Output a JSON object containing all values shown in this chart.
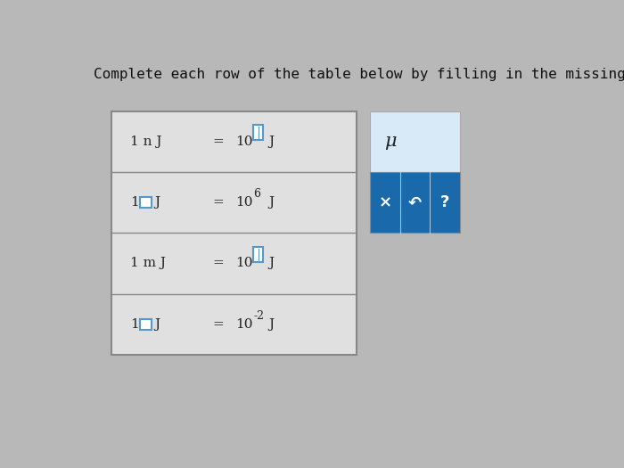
{
  "title": "Complete each row of the table below by filling in the missing pref",
  "title_fontsize": 11.5,
  "background_color": "#b8b8b8",
  "table_bg": "#e8e8e8",
  "rows": [
    {
      "left1": "1 n J",
      "left_has_box": false,
      "eq": "=",
      "right": "10",
      "sup": "",
      "unit": "J",
      "sup_style": "box"
    },
    {
      "left1": "1",
      "left_has_box": true,
      "left2": "J",
      "eq": "=",
      "right": "10",
      "sup": "6",
      "unit": "J",
      "sup_style": "plain"
    },
    {
      "left1": "1 m J",
      "left_has_box": false,
      "eq": "=",
      "right": "10",
      "sup": "",
      "unit": "J",
      "sup_style": "box"
    },
    {
      "left1": "1",
      "left_has_box": true,
      "left2": "J",
      "eq": "=",
      "right": "10",
      "sup": "-2",
      "unit": "J",
      "sup_style": "plain"
    }
  ],
  "panel_bg": "#1a6aab",
  "panel_light_bg": "#d8eaf8",
  "panel_symbols": [
    "×",
    "↶",
    "?"
  ],
  "panel_mu": "μ",
  "box_color": "#5599cc",
  "box_color_row1": "#777777"
}
